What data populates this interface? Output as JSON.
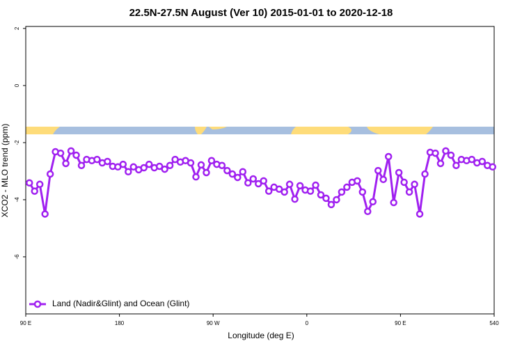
{
  "chart_data": {
    "type": "line",
    "title": "22.5N-27.5N August (Ver 10)   2015-01-01 to 2020-12-18",
    "x_label": "Longitude (deg E)",
    "y_label": "XCO2 - MLO trend (ppm)",
    "xlim": [
      90,
      540
    ],
    "ylim": [
      -8,
      2.07
    ],
    "xticks": [
      {
        "value": 90,
        "label": "90 E"
      },
      180,
      {
        "value": 270,
        "label": "90 W"
      },
      {
        "value": 360,
        "label": "0"
      },
      {
        "value": 450,
        "label": "90 E"
      },
      540
    ],
    "yticks": [
      -6,
      -4,
      -2,
      0,
      2
    ],
    "legend_position": "bottom-left",
    "x": [
      93.5,
      98.5,
      103.5,
      108.5,
      113.5,
      118.5,
      123.5,
      128.5,
      133.5,
      138.5,
      143.5,
      148.5,
      153.5,
      158.5,
      163.5,
      168.5,
      173.5,
      178.5,
      183.5,
      188.5,
      193.5,
      198.5,
      203.5,
      208.5,
      213.5,
      218.5,
      223.5,
      228.5,
      233.5,
      238.5,
      243.5,
      248.5,
      253.5,
      258.5,
      263.5,
      268.5,
      273.5,
      278.5,
      283.5,
      288.5,
      293.5,
      298.5,
      303.5,
      308.5,
      313.5,
      318.5,
      323.5,
      328.5,
      333.5,
      338.5,
      343.5,
      348.5,
      353.5,
      358.5,
      363.5,
      368.5,
      373.5,
      378.5,
      383.5,
      388.5,
      393.5,
      398.5,
      403.5,
      408.5,
      413.5,
      418.5,
      423.5,
      428.5,
      433.5,
      438.5,
      443.5,
      448.5,
      453.5,
      458.5,
      463.5,
      468.5,
      473.5,
      478.5,
      483.5,
      488.5,
      493.5,
      498.5,
      503.5,
      508.5,
      513.5,
      518.5,
      523.5,
      528.5,
      533.5,
      538.5
    ],
    "series": [
      {
        "name": "Land (Nadir&Glint) and Ocean (Glint)",
        "color": "#a020f0",
        "values": [
          -3.41,
          -3.7,
          -3.46,
          -4.5,
          -3.1,
          -2.32,
          -2.37,
          -2.73,
          -2.29,
          -2.44,
          -2.8,
          -2.59,
          -2.63,
          -2.59,
          -2.71,
          -2.66,
          -2.83,
          -2.85,
          -2.76,
          -3.02,
          -2.85,
          -2.95,
          -2.88,
          -2.76,
          -2.88,
          -2.83,
          -2.93,
          -2.8,
          -2.59,
          -2.68,
          -2.63,
          -2.71,
          -3.2,
          -2.78,
          -3.05,
          -2.63,
          -2.76,
          -2.8,
          -2.98,
          -3.1,
          -3.22,
          -3.02,
          -3.41,
          -3.27,
          -3.44,
          -3.34,
          -3.7,
          -3.56,
          -3.63,
          -3.73,
          -3.46,
          -3.98,
          -3.51,
          -3.66,
          -3.7,
          -3.49,
          -3.83,
          -3.95,
          -4.17,
          -4.0,
          -3.73,
          -3.56,
          -3.39,
          -3.34,
          -3.73,
          -4.41,
          -4.07,
          -2.98,
          -3.29,
          -2.49,
          -4.1,
          -3.05,
          -3.39,
          -3.73,
          -3.46,
          -4.5,
          -3.1,
          -2.34,
          -2.37,
          -2.73,
          -2.29,
          -2.44,
          -2.8,
          -2.59,
          -2.63,
          -2.59,
          -2.71,
          -2.66,
          -2.8,
          -2.85
        ]
      }
    ]
  }
}
